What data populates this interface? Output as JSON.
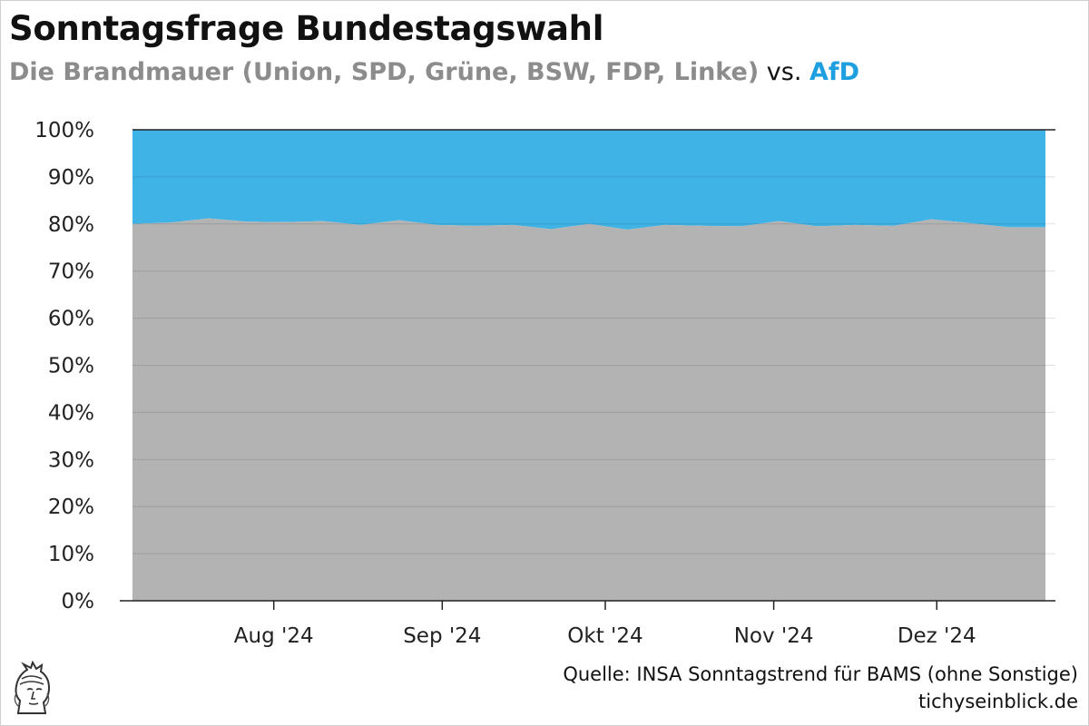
{
  "title": "Sonntagsfrage Bundestagswahl",
  "subtitle": {
    "main": "Die Brandmauer (Union, SPD, Grüne, BSW, FDP, Linke)",
    "vs": "vs.",
    "afd": "AfD"
  },
  "colors": {
    "brandmauer": "#b3b3b3",
    "afd": "#3fb2e6",
    "afd_text": "#1e9fe0",
    "subtitle_gray": "#8c8c8c"
  },
  "footer": {
    "source": "Quelle: INSA Sonntagstrend für BAMS (ohne Sonstige)",
    "site": "tichyseinblick.de"
  },
  "logo_icon": "tichys-einblick-head-logo-icon",
  "chart_data": {
    "type": "area",
    "stacked": true,
    "x": [
      "2024-07-06",
      "2024-07-13",
      "2024-07-20",
      "2024-07-27",
      "2024-08-03",
      "2024-08-10",
      "2024-08-17",
      "2024-08-24",
      "2024-08-31",
      "2024-09-07",
      "2024-09-14",
      "2024-09-21",
      "2024-09-28",
      "2024-10-05",
      "2024-10-12",
      "2024-10-19",
      "2024-10-26",
      "2024-11-02",
      "2024-11-09",
      "2024-11-16",
      "2024-11-23",
      "2024-11-30",
      "2024-12-07",
      "2024-12-14",
      "2024-12-21"
    ],
    "series": [
      {
        "name": "Die Brandmauer (Union, SPD, Grüne, BSW, FDP, Linke)",
        "values": [
          80.0,
          80.3,
          81.2,
          80.5,
          80.4,
          80.6,
          79.8,
          80.8,
          79.8,
          79.6,
          79.8,
          78.9,
          80.0,
          78.8,
          79.8,
          79.6,
          79.5,
          80.6,
          79.5,
          79.8,
          79.6,
          81.0,
          80.2,
          79.3,
          79.3
        ]
      },
      {
        "name": "AfD",
        "values": [
          20.0,
          19.7,
          18.8,
          19.5,
          19.6,
          19.4,
          20.2,
          19.2,
          20.2,
          20.4,
          20.2,
          21.1,
          20.0,
          21.2,
          20.2,
          20.4,
          20.5,
          19.4,
          20.5,
          20.2,
          20.4,
          19.0,
          19.8,
          20.7,
          20.7
        ]
      }
    ],
    "x_ticks": [
      {
        "label": "Aug '24",
        "date": "2024-08-01"
      },
      {
        "label": "Sep '24",
        "date": "2024-09-01"
      },
      {
        "label": "Okt '24",
        "date": "2024-10-01"
      },
      {
        "label": "Nov '24",
        "date": "2024-11-01"
      },
      {
        "label": "Dez '24",
        "date": "2024-12-01"
      }
    ],
    "y_ticks": [
      "0%",
      "10%",
      "20%",
      "30%",
      "40%",
      "50%",
      "60%",
      "70%",
      "80%",
      "90%",
      "100%"
    ],
    "ylim": [
      0,
      100
    ],
    "y_unit": "%",
    "grid": true,
    "legend": "none"
  }
}
